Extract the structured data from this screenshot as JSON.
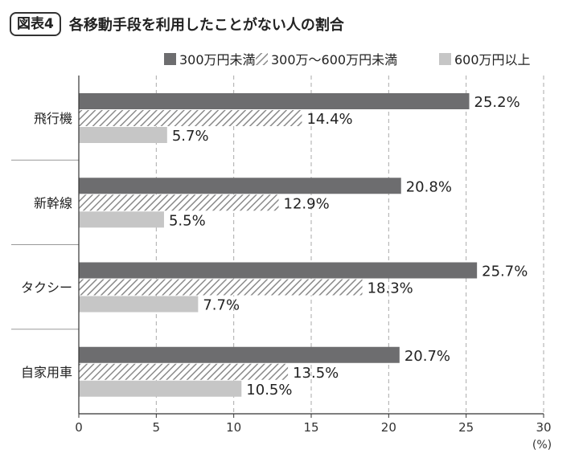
{
  "figure": {
    "badge": "図表4",
    "title": "各移動手段を利用したことがない人の割合"
  },
  "colors": {
    "series_1": "#6d6d6f",
    "series_2_stripe": "#8a8a8a",
    "series_3": "#c6c6c6",
    "axis": "#333333",
    "grid": "#aaaaaa"
  },
  "chart_data": {
    "type": "bar",
    "orientation": "horizontal",
    "categories": [
      "飛行機",
      "新幹線",
      "タクシー",
      "自家用車"
    ],
    "series": [
      {
        "name": "300万円未満",
        "values": [
          25.2,
          20.8,
          25.7,
          20.7
        ],
        "labels": [
          "25.2%",
          "20.8%",
          "25.7%",
          "20.7%"
        ],
        "fill": "solid-dark"
      },
      {
        "name": "300万～600万円未満",
        "values": [
          14.4,
          12.9,
          18.3,
          13.5
        ],
        "labels": [
          "14.4%",
          "12.9%",
          "18.3%",
          "13.5%"
        ],
        "fill": "hatched"
      },
      {
        "name": "600万円以上",
        "values": [
          5.7,
          5.5,
          7.7,
          10.5
        ],
        "labels": [
          "5.7%",
          "5.5%",
          "7.7%",
          "10.5%"
        ],
        "fill": "solid-light"
      }
    ],
    "xlim": [
      0,
      30
    ],
    "xticks": [
      0,
      5,
      10,
      15,
      20,
      25,
      30
    ],
    "xtick_labels": [
      "0",
      "5",
      "10",
      "15",
      "20",
      "25",
      "30"
    ],
    "xlabel": "(%)",
    "grid": "vertical-dashed",
    "legend_position": "top-right"
  }
}
